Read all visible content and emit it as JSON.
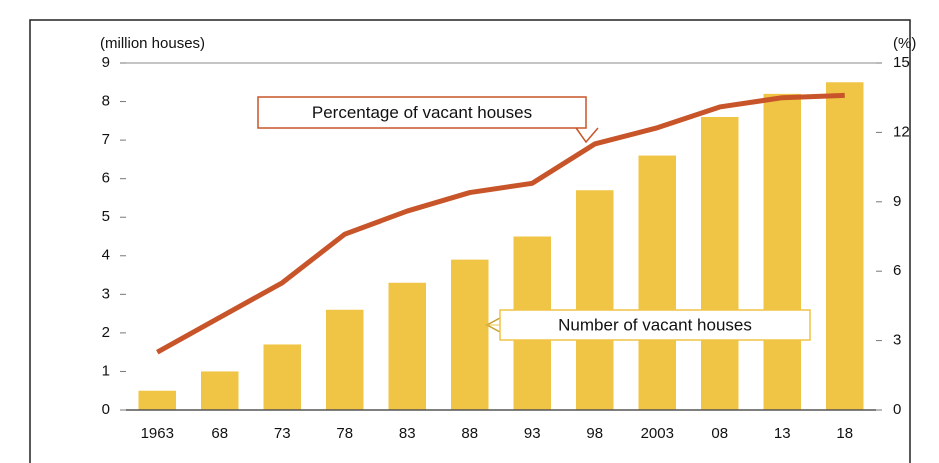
{
  "chart_data": {
    "type": "bar",
    "y_label": "(million houses)",
    "y2_label": "(%)",
    "categories": [
      "1963",
      "68",
      "73",
      "78",
      "83",
      "88",
      "93",
      "98",
      "2003",
      "08",
      "13",
      "18"
    ],
    "series": [
      {
        "name": "Number of vacant houses",
        "type": "bar",
        "color": "#f0c445",
        "values": [
          0.5,
          1.0,
          1.7,
          2.6,
          3.3,
          3.9,
          4.5,
          5.7,
          6.6,
          7.6,
          8.2,
          8.5
        ]
      },
      {
        "name": "Percentage of vacant houses",
        "type": "line",
        "axis": "y2",
        "color": "#c8552a",
        "values": [
          2.5,
          4.0,
          5.5,
          7.6,
          8.6,
          9.4,
          9.8,
          11.5,
          12.2,
          13.1,
          13.5,
          13.6
        ]
      }
    ],
    "ylim": [
      0,
      9
    ],
    "yticks": [
      0,
      1,
      2,
      3,
      4,
      5,
      6,
      7,
      8,
      9
    ],
    "y2lim": [
      0,
      15
    ],
    "y2ticks": [
      0,
      3,
      6,
      9,
      12,
      15
    ]
  }
}
